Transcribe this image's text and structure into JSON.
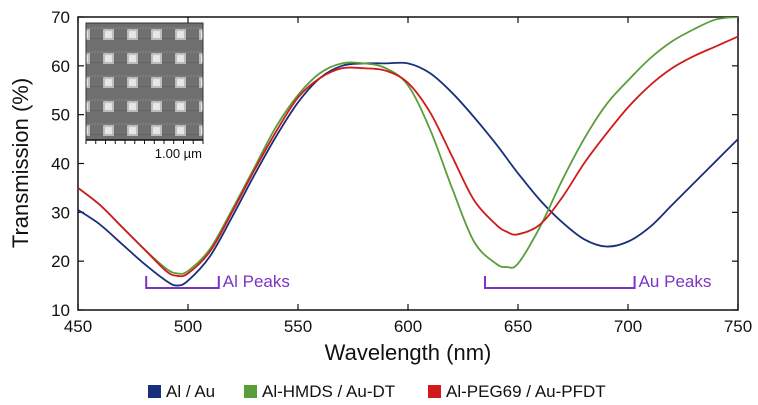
{
  "chart_data": {
    "type": "line",
    "xlabel": "Wavelength (nm)",
    "ylabel": "Transmission (%)",
    "xlim": [
      450,
      750
    ],
    "ylim": [
      10,
      70
    ],
    "x_ticks": [
      "450",
      "500",
      "550",
      "600",
      "650",
      "700",
      "750"
    ],
    "y_ticks": [
      "10",
      "20",
      "30",
      "40",
      "50",
      "60",
      "70"
    ],
    "grid": false,
    "legend_position": "bottom",
    "x": [
      450,
      460,
      470,
      480,
      490,
      495,
      500,
      510,
      520,
      530,
      540,
      550,
      560,
      570,
      580,
      590,
      600,
      610,
      620,
      630,
      640,
      645,
      650,
      660,
      670,
      680,
      690,
      700,
      710,
      720,
      730,
      740,
      750
    ],
    "series": [
      {
        "name": "Al / Au",
        "color": "#1a2f7a",
        "values": [
          30.5,
          27.5,
          23.5,
          19.5,
          16.0,
          15.0,
          16.0,
          21.0,
          29.0,
          37.5,
          45.5,
          52.5,
          57.5,
          60.0,
          60.5,
          60.5,
          60.5,
          58.5,
          54.5,
          49.5,
          44.0,
          41.0,
          38.0,
          32.5,
          28.0,
          24.5,
          23.0,
          24.0,
          27.0,
          31.5,
          36.0,
          40.5,
          45.0
        ]
      },
      {
        "name": "Al-HMDS / Au-DT",
        "color": "#5a9e3a",
        "values": [
          35.0,
          31.5,
          27.0,
          22.5,
          18.5,
          17.5,
          18.0,
          22.5,
          30.5,
          39.0,
          47.5,
          54.0,
          58.5,
          60.5,
          60.5,
          59.5,
          56.0,
          47.0,
          35.0,
          24.0,
          19.5,
          18.8,
          19.5,
          27.0,
          36.5,
          45.0,
          52.0,
          57.0,
          61.5,
          65.0,
          67.5,
          69.5,
          70.0
        ]
      },
      {
        "name": "Al-PEG69 / Au-PFDT",
        "color": "#d11a1a",
        "values": [
          35.0,
          31.5,
          27.0,
          22.5,
          18.0,
          17.0,
          17.5,
          22.0,
          30.0,
          38.5,
          46.5,
          53.5,
          57.5,
          59.5,
          59.5,
          59.0,
          56.5,
          50.5,
          41.5,
          32.5,
          27.5,
          26.0,
          25.5,
          27.5,
          33.0,
          40.0,
          46.0,
          51.5,
          56.0,
          59.5,
          62.0,
          64.0,
          66.0
        ]
      }
    ],
    "annotations": [
      {
        "label": "Al Peaks",
        "x_start": 481,
        "x_end": 514,
        "y": 14.5,
        "color": "#7a35c4"
      },
      {
        "label": "Au Peaks",
        "x_start": 635,
        "x_end": 703,
        "y": 14.5,
        "color": "#7a35c4"
      }
    ],
    "inset": {
      "label": "1.00 µm"
    }
  }
}
